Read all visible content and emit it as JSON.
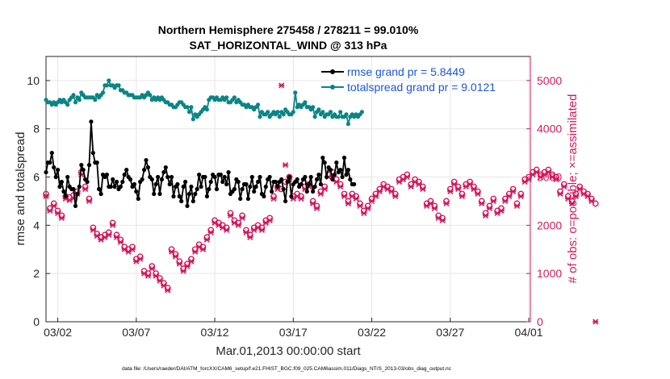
{
  "chart_data": {
    "type": "line",
    "title_line1": "Northern Hemisphere 275458 / 278211 = 99.010%",
    "title_line2": "SAT_HORIZONTAL_WIND @ 313 hPa",
    "xlabel": "Mar.01,2013 00:00:00 start",
    "ylabel_left": "rmse and totalspread",
    "ylabel_right": "# of obs: o=possible; ×=assimilated",
    "footer": "data file: /Users/raeder/DAI/ATM_forcXX/CAM6_setup/f.e21.FHIST_BGC.f09_025.CAM6assim.011/Diags_NTrS_2013-03/obs_diag_output.nc",
    "x_range_days": [
      0.25,
      31.1
    ],
    "x_ticks": [
      {
        "day": 1,
        "label": "03/02"
      },
      {
        "day": 6,
        "label": "03/07"
      },
      {
        "day": 11,
        "label": "03/12"
      },
      {
        "day": 16,
        "label": "03/17"
      },
      {
        "day": 21,
        "label": "03/22"
      },
      {
        "day": 26,
        "label": "03/27"
      },
      {
        "day": 31,
        "label": "04/01"
      }
    ],
    "y_left": {
      "min": 0,
      "max": 11,
      "ticks": [
        "0",
        "2",
        "4",
        "6",
        "8",
        "10"
      ]
    },
    "y_right": {
      "min": 0,
      "max": 5500,
      "ticks": [
        "0",
        "1000",
        "2000",
        "3000",
        "4000",
        "5000"
      ]
    },
    "colors": {
      "rmse": "#000000",
      "spread": "#0a8585",
      "obs": "#d6195c",
      "axis": "#262626",
      "grid": "#e6e6e6"
    },
    "legend": [
      {
        "label": "rmse grand pr = 5.8449",
        "color": "#000000"
      },
      {
        "label": "totalspread grand pr = 9.0121",
        "color": "#0a8585"
      }
    ],
    "series": [
      {
        "name": "rmse",
        "axis": "left",
        "step_days": 0.125,
        "start_day": 0.25,
        "values": [
          6.2,
          6.6,
          6.6,
          7.0,
          6.4,
          6.0,
          6.3,
          5.6,
          5.8,
          5.4,
          5.2,
          6.0,
          5.6,
          5.5,
          5.5,
          4.8,
          5.3,
          5.6,
          6.5,
          6.3,
          5.9,
          5.8,
          6.5,
          8.3,
          7.0,
          6.6,
          6.6,
          5.5,
          5.3,
          6.1,
          6.0,
          6.1,
          5.6,
          5.6,
          5.9,
          5.6,
          5.8,
          5.5,
          5.6,
          5.8,
          6.1,
          6.3,
          6.0,
          5.9,
          5.6,
          5.7,
          5.4,
          5.1,
          5.8,
          5.9,
          6.3,
          6.7,
          6.4,
          6.0,
          5.9,
          5.3,
          5.7,
          6.0,
          5.3,
          5.9,
          6.2,
          6.4,
          6.0,
          5.7,
          6.0,
          5.2,
          5.6,
          5.7,
          5.2,
          5.0,
          5.6,
          5.8,
          4.8,
          5.3,
          5.6,
          5.0,
          5.3,
          5.5,
          6.1,
          5.6,
          6.0,
          6.0,
          5.2,
          5.5,
          5.8,
          6.1,
          6.0,
          5.5,
          6.1,
          6.1,
          5.8,
          6.0,
          5.7,
          6.2,
          5.3,
          5.4,
          5.5,
          5.9,
          5.8,
          5.1,
          5.5,
          5.7,
          5.7,
          5.1,
          5.6,
          6.0,
          5.4,
          5.6,
          5.8,
          6.0,
          5.3,
          5.2,
          5.6,
          5.9,
          6.0,
          5.4,
          5.8,
          5.8,
          5.6,
          5.8,
          5.9,
          5.5,
          5.0,
          5.8,
          6.0,
          5.2,
          5.7,
          5.8,
          5.9,
          5.6,
          5.7,
          5.9,
          6.0,
          5.4,
          5.7,
          6.0,
          5.4,
          5.6,
          5.9,
          6.1,
          5.7,
          6.8,
          6.6,
          6.0,
          6.4,
          6.3,
          5.9,
          6.1,
          6.6,
          6.2,
          6.3,
          6.0,
          6.8,
          6.1,
          6.3,
          5.9,
          5.7,
          5.7
        ]
      },
      {
        "name": "totalspread",
        "axis": "left",
        "step_days": 0.125,
        "start_day": 0.25,
        "values": [
          9.2,
          9.1,
          9.1,
          9.0,
          9.1,
          9.0,
          9.1,
          9.2,
          9.1,
          9.2,
          9.1,
          9.0,
          9.2,
          9.3,
          9.4,
          9.1,
          9.3,
          9.2,
          9.5,
          9.4,
          9.3,
          9.3,
          9.3,
          9.3,
          9.3,
          9.2,
          9.4,
          9.3,
          9.4,
          9.5,
          9.8,
          9.8,
          10.0,
          9.8,
          9.8,
          9.7,
          9.8,
          9.8,
          9.6,
          9.6,
          9.5,
          9.5,
          9.4,
          9.4,
          9.4,
          9.3,
          9.3,
          9.3,
          9.3,
          9.4,
          9.3,
          9.4,
          9.5,
          9.4,
          9.2,
          9.3,
          9.2,
          9.3,
          9.2,
          9.3,
          9.2,
          9.1,
          9.1,
          9.0,
          9.0,
          8.9,
          8.9,
          9.0,
          9.1,
          9.1,
          9.0,
          8.9,
          8.9,
          8.7,
          8.9,
          8.4,
          8.6,
          8.5,
          8.6,
          8.7,
          8.8,
          8.9,
          8.8,
          9.2,
          9.3,
          9.3,
          9.2,
          9.3,
          9.2,
          9.2,
          9.3,
          9.2,
          9.3,
          9.1,
          9.1,
          9.2,
          9.3,
          9.1,
          9.2,
          9.1,
          9.0,
          9.0,
          8.9,
          9.0,
          8.9,
          8.9,
          8.8,
          8.9,
          9.0,
          8.5,
          8.7,
          8.6,
          8.6,
          8.7,
          8.5,
          8.6,
          8.7,
          8.6,
          8.7,
          8.5,
          8.7,
          8.6,
          8.8,
          8.7,
          8.6,
          8.6,
          8.7,
          9.5,
          8.9,
          9.0,
          8.9,
          9.0,
          9.1,
          8.9,
          8.9,
          8.8,
          8.9,
          8.5,
          8.7,
          8.8,
          8.6,
          8.7,
          8.5,
          8.6,
          8.6,
          8.7,
          8.5,
          8.6,
          8.5,
          8.5,
          8.7,
          8.5,
          8.5,
          8.6,
          8.2,
          8.5,
          8.6,
          8.5,
          8.6,
          8.5,
          8.6,
          8.7
        ]
      },
      {
        "name": "obs_possible",
        "axis": "right",
        "step_days": 0.25,
        "start_day": 0.25,
        "values": [
          2650,
          2350,
          2450,
          2300,
          2200,
          2600,
          2580,
          2620,
          2700,
          3100,
          2800,
          2550,
          1950,
          1820,
          1750,
          1800,
          1850,
          2050,
          1800,
          1700,
          1550,
          1500,
          1550,
          1300,
          1350,
          1050,
          1000,
          1150,
          1000,
          900,
          800,
          700,
          1500,
          1400,
          1250,
          1100,
          1200,
          1300,
          1500,
          1600,
          1550,
          1750,
          1900,
          2100,
          2050,
          2000,
          1950,
          2250,
          2100,
          2050,
          2200,
          1900,
          1800,
          1950,
          2000,
          1950,
          2100,
          2150,
          2600,
          2800,
          2750,
          2900,
          3000,
          2600,
          2650,
          2600,
          2800,
          2850,
          2500,
          2400,
          2700,
          2800,
          3050,
          3100,
          2950,
          2850,
          2650,
          2500,
          2650,
          2600,
          2450,
          2300,
          2400,
          2550,
          2650,
          2750,
          2850,
          2800,
          2750,
          2650,
          2950,
          3000,
          3050,
          2850,
          2950,
          2900,
          2800,
          2450,
          2500,
          2400,
          2200,
          2150,
          2500,
          2750,
          2900,
          2800,
          2650,
          2850,
          2900,
          2800,
          2700,
          2500,
          2250,
          2400,
          2550,
          2300,
          2350,
          2550,
          2650,
          2750,
          2450,
          2650,
          2950,
          3000,
          3100,
          3150,
          3050,
          3100,
          3150,
          3050,
          3000,
          2700,
          2850,
          2600,
          2500,
          2650,
          2800,
          2700,
          2650,
          2550,
          2450
        ]
      },
      {
        "name": "obs_assimilated",
        "axis": "right",
        "step_days": 0.25,
        "start_day": 0.25,
        "values": [
          2600,
          2300,
          2400,
          2250,
          2150,
          2550,
          2520,
          2560,
          2650,
          3050,
          2750,
          2500,
          1900,
          1780,
          1700,
          1750,
          1800,
          2000,
          1750,
          1650,
          1500,
          1450,
          1500,
          1250,
          1300,
          1000,
          950,
          1100,
          950,
          850,
          750,
          650,
          1450,
          1350,
          1200,
          1050,
          1150,
          1250,
          1450,
          1550,
          1500,
          1700,
          1850,
          2050,
          2000,
          1950,
          1900,
          2200,
          2050,
          2000,
          2150,
          1850,
          1750,
          1900,
          1950,
          1900,
          2050,
          2100,
          2550,
          2750,
          4900,
          3250,
          2950,
          2550,
          2600,
          2550,
          2750,
          2800,
          2450,
          2350,
          2650,
          2750,
          3000,
          3050,
          2900,
          2800,
          2600,
          2450,
          2600,
          2550,
          2400,
          2250,
          2350,
          2500,
          2600,
          2700,
          2800,
          2750,
          2700,
          2600,
          2900,
          2950,
          3000,
          2800,
          2900,
          2850,
          2750,
          2400,
          2450,
          2350,
          2150,
          2100,
          2450,
          2700,
          2850,
          2750,
          2600,
          2800,
          2850,
          2750,
          2650,
          2450,
          2200,
          2350,
          2500,
          2250,
          2300,
          2500,
          2600,
          2700,
          2400,
          2600,
          2900,
          2950,
          3050,
          3100,
          3000,
          3050,
          3100,
          3000,
          2950,
          2650,
          2800,
          2550,
          2450,
          2600,
          2750,
          2650,
          2600,
          2500,
          0
        ]
      }
    ]
  }
}
